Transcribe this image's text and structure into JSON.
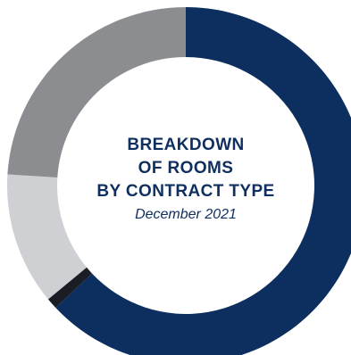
{
  "chart_data": {
    "type": "pie",
    "variant": "donut",
    "title_lines": [
      "BREAKDOWN",
      "OF ROOMS",
      "BY CONTRACT TYPE"
    ],
    "subtitle": "December 2021",
    "series": [
      {
        "value": 63.0,
        "color": "#0d2f5f"
      },
      {
        "value": 1.0,
        "color": "#1a1d24"
      },
      {
        "value": 12.0,
        "color": "#cfd0d3"
      },
      {
        "value": 24.0,
        "color": "#8c8d91"
      }
    ],
    "start_angle_deg": 0,
    "direction": "clockwise"
  }
}
